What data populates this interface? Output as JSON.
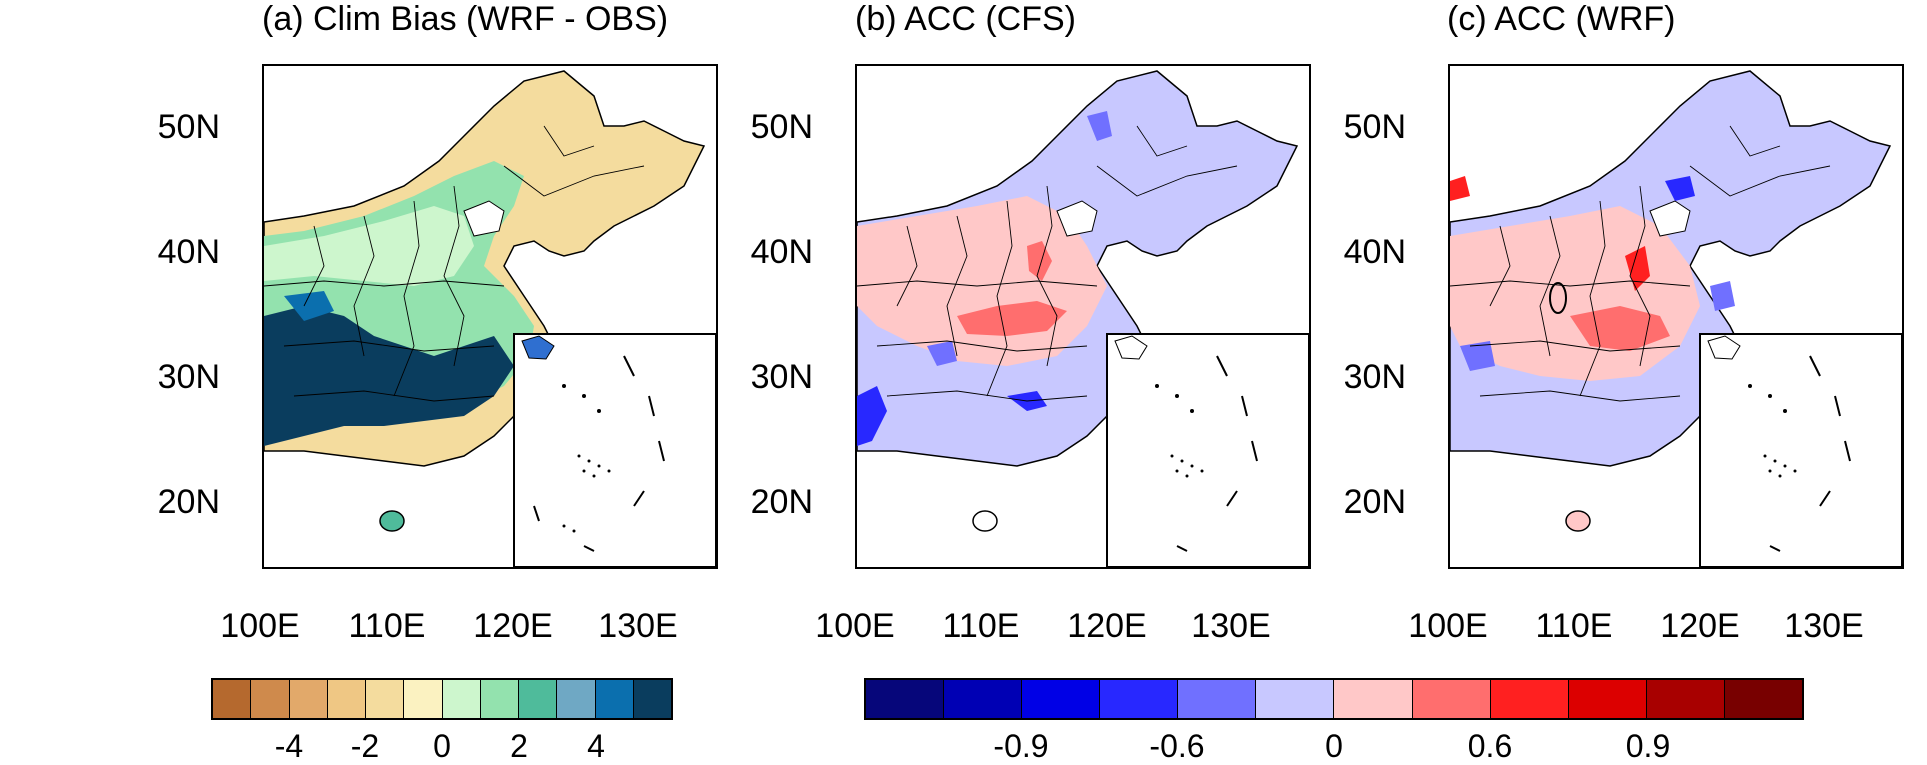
{
  "panels": [
    {
      "title": "(a) Clim Bias (WRF - OBS)"
    },
    {
      "title": "(b) ACC (CFS)"
    },
    {
      "title": "(c) ACC (WRF)"
    }
  ],
  "axes": {
    "lat_labels": [
      "50N",
      "40N",
      "30N",
      "20N"
    ],
    "lon_labels": [
      "100E",
      "110E",
      "120E",
      "130E"
    ]
  },
  "colorbars": {
    "bias": {
      "colors": [
        "#b5692e",
        "#cf8a4c",
        "#e2a96a",
        "#efc784",
        "#f4dc9e",
        "#fbf2c1",
        "#cdf6cd",
        "#93e2ae",
        "#4fbb9b",
        "#6fa8c4",
        "#0b6fae",
        "#0a3d5e"
      ],
      "labels": [
        "-4",
        "-2",
        "0",
        "2",
        "4"
      ]
    },
    "acc": {
      "colors": [
        "#06067a",
        "#0000b4",
        "#0000e6",
        "#2828ff",
        "#7070ff",
        "#c8c8ff",
        "#ffc8c8",
        "#ff6e6e",
        "#ff2020",
        "#dc0000",
        "#a80000",
        "#780000"
      ],
      "labels": [
        "-0.9",
        "-0.6",
        "0",
        "0.6",
        "0.9"
      ]
    }
  }
}
